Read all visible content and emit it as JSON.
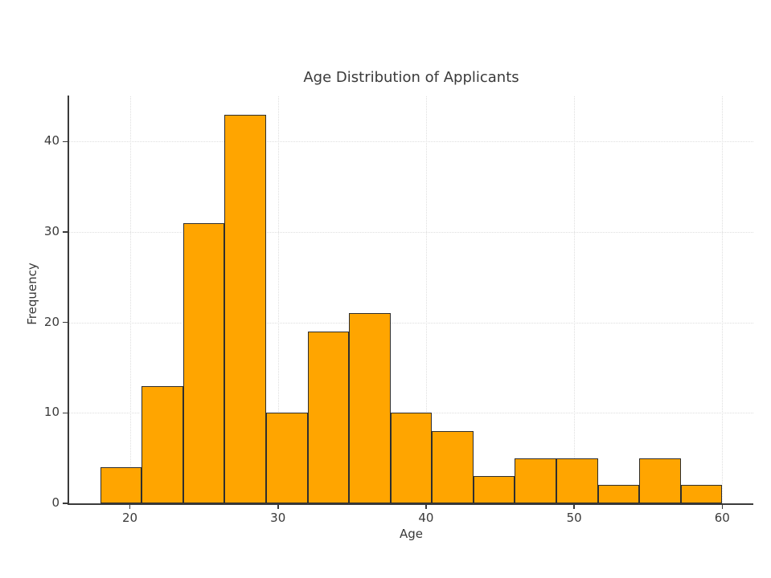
{
  "chart_data": {
    "type": "bar",
    "subtype": "histogram",
    "title": "Age Distribution of Applicants",
    "xlabel": "Age",
    "ylabel": "Frequency",
    "bin_edges": [
      18.0,
      20.8,
      23.6,
      26.4,
      29.2,
      32.0,
      34.8,
      37.6,
      40.4,
      43.2,
      46.0,
      48.8,
      51.6,
      54.4,
      57.2,
      60.0
    ],
    "values": [
      4,
      13,
      31,
      43,
      10,
      19,
      21,
      10,
      8,
      3,
      5,
      5,
      2,
      5,
      2
    ],
    "x_ticks": [
      20,
      30,
      40,
      50,
      60
    ],
    "y_ticks": [
      0,
      10,
      20,
      30,
      40
    ],
    "xlim": [
      15.9,
      62.1
    ],
    "ylim": [
      0,
      45
    ],
    "grid": true,
    "legend": "none",
    "bar_color": "#FFA500",
    "bar_edge_color": "#2e2e2e",
    "grid_color": "#dedede",
    "axis_color": "#3a3a3a",
    "text_color": "#3a3a3a",
    "background": "#ffffff"
  }
}
